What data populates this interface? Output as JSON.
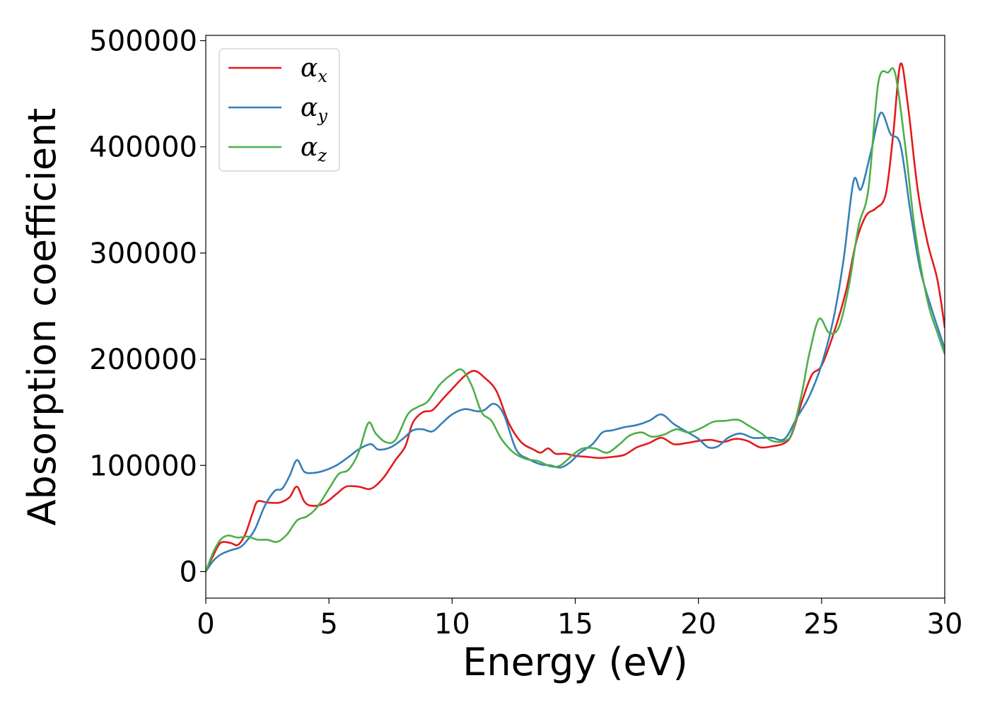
{
  "chart_data": {
    "type": "line",
    "title": "",
    "xlabel": "Energy (eV)",
    "ylabel": "Absorption coefficient",
    "xlim": [
      0,
      30
    ],
    "ylim": [
      -25000,
      505000
    ],
    "xticks": [
      0,
      5,
      10,
      15,
      20,
      25,
      30
    ],
    "yticks": [
      0,
      100000,
      200000,
      300000,
      400000,
      500000
    ],
    "grid": false,
    "legend_position": "top-left",
    "series": [
      {
        "name": "αx",
        "symbol": "α",
        "subscript": "x",
        "color": "#e41a1c",
        "points": [
          [
            0,
            0
          ],
          [
            0.3,
            15000
          ],
          [
            0.6,
            27000
          ],
          [
            1.0,
            27000
          ],
          [
            1.3,
            25000
          ],
          [
            1.6,
            35000
          ],
          [
            1.9,
            55000
          ],
          [
            2.1,
            66000
          ],
          [
            2.5,
            65000
          ],
          [
            3.0,
            65000
          ],
          [
            3.4,
            70000
          ],
          [
            3.7,
            80000
          ],
          [
            4.0,
            66000
          ],
          [
            4.3,
            62000
          ],
          [
            4.8,
            64000
          ],
          [
            5.3,
            73000
          ],
          [
            5.7,
            80000
          ],
          [
            6.2,
            80000
          ],
          [
            6.7,
            78000
          ],
          [
            7.2,
            88000
          ],
          [
            7.7,
            105000
          ],
          [
            8.1,
            118000
          ],
          [
            8.4,
            140000
          ],
          [
            8.8,
            150000
          ],
          [
            9.2,
            152000
          ],
          [
            9.6,
            162000
          ],
          [
            10.0,
            172000
          ],
          [
            10.5,
            184000
          ],
          [
            10.9,
            189000
          ],
          [
            11.3,
            183000
          ],
          [
            11.8,
            170000
          ],
          [
            12.3,
            140000
          ],
          [
            12.8,
            122000
          ],
          [
            13.3,
            115000
          ],
          [
            13.6,
            112000
          ],
          [
            13.9,
            116000
          ],
          [
            14.2,
            111000
          ],
          [
            14.6,
            111000
          ],
          [
            15.0,
            109000
          ],
          [
            15.5,
            108000
          ],
          [
            16.0,
            107000
          ],
          [
            16.5,
            108000
          ],
          [
            17.0,
            110000
          ],
          [
            17.5,
            117000
          ],
          [
            18.0,
            121000
          ],
          [
            18.5,
            126000
          ],
          [
            19.0,
            120000
          ],
          [
            19.5,
            121000
          ],
          [
            20.0,
            123000
          ],
          [
            20.5,
            124000
          ],
          [
            21.0,
            122000
          ],
          [
            21.5,
            125000
          ],
          [
            22.0,
            123000
          ],
          [
            22.5,
            117000
          ],
          [
            23.0,
            118000
          ],
          [
            23.5,
            121000
          ],
          [
            23.8,
            130000
          ],
          [
            24.2,
            160000
          ],
          [
            24.6,
            185000
          ],
          [
            25.0,
            194000
          ],
          [
            25.5,
            225000
          ],
          [
            26.0,
            265000
          ],
          [
            26.4,
            310000
          ],
          [
            26.8,
            335000
          ],
          [
            27.2,
            342000
          ],
          [
            27.6,
            355000
          ],
          [
            27.9,
            410000
          ],
          [
            28.2,
            478000
          ],
          [
            28.5,
            440000
          ],
          [
            28.9,
            360000
          ],
          [
            29.3,
            310000
          ],
          [
            29.7,
            275000
          ],
          [
            30.0,
            230000
          ]
        ]
      },
      {
        "name": "αy",
        "symbol": "α",
        "subscript": "y",
        "color": "#377eb8",
        "points": [
          [
            0,
            0
          ],
          [
            0.3,
            10000
          ],
          [
            0.6,
            16000
          ],
          [
            1.0,
            20000
          ],
          [
            1.4,
            23000
          ],
          [
            1.7,
            30000
          ],
          [
            2.0,
            40000
          ],
          [
            2.4,
            62000
          ],
          [
            2.8,
            76000
          ],
          [
            3.1,
            78000
          ],
          [
            3.4,
            90000
          ],
          [
            3.7,
            105000
          ],
          [
            4.0,
            94000
          ],
          [
            4.4,
            93000
          ],
          [
            4.8,
            95000
          ],
          [
            5.3,
            100000
          ],
          [
            5.8,
            108000
          ],
          [
            6.2,
            115000
          ],
          [
            6.7,
            120000
          ],
          [
            7.0,
            115000
          ],
          [
            7.5,
            117000
          ],
          [
            8.0,
            125000
          ],
          [
            8.4,
            133000
          ],
          [
            8.8,
            134000
          ],
          [
            9.2,
            132000
          ],
          [
            9.6,
            140000
          ],
          [
            10.0,
            148000
          ],
          [
            10.5,
            153000
          ],
          [
            11.0,
            151000
          ],
          [
            11.3,
            152000
          ],
          [
            11.7,
            158000
          ],
          [
            12.1,
            148000
          ],
          [
            12.6,
            115000
          ],
          [
            13.1,
            106000
          ],
          [
            13.6,
            101000
          ],
          [
            14.0,
            100000
          ],
          [
            14.4,
            98000
          ],
          [
            14.8,
            103000
          ],
          [
            15.2,
            112000
          ],
          [
            15.7,
            120000
          ],
          [
            16.1,
            131000
          ],
          [
            16.5,
            133000
          ],
          [
            17.0,
            136000
          ],
          [
            17.5,
            138000
          ],
          [
            18.0,
            142000
          ],
          [
            18.5,
            148000
          ],
          [
            19.0,
            139000
          ],
          [
            19.5,
            132000
          ],
          [
            20.0,
            125000
          ],
          [
            20.4,
            117000
          ],
          [
            20.8,
            118000
          ],
          [
            21.2,
            126000
          ],
          [
            21.7,
            130000
          ],
          [
            22.2,
            126000
          ],
          [
            22.6,
            126000
          ],
          [
            23.0,
            126000
          ],
          [
            23.5,
            125000
          ],
          [
            24.0,
            145000
          ],
          [
            24.5,
            165000
          ],
          [
            25.0,
            195000
          ],
          [
            25.5,
            240000
          ],
          [
            25.9,
            295000
          ],
          [
            26.3,
            368000
          ],
          [
            26.6,
            360000
          ],
          [
            27.0,
            395000
          ],
          [
            27.4,
            432000
          ],
          [
            27.8,
            412000
          ],
          [
            28.2,
            402000
          ],
          [
            28.6,
            340000
          ],
          [
            29.0,
            285000
          ],
          [
            29.5,
            245000
          ],
          [
            30.0,
            210000
          ]
        ]
      },
      {
        "name": "αz",
        "symbol": "α",
        "subscript": "z",
        "color": "#4daf4a",
        "points": [
          [
            0,
            0
          ],
          [
            0.3,
            18000
          ],
          [
            0.6,
            30000
          ],
          [
            0.9,
            34000
          ],
          [
            1.3,
            32000
          ],
          [
            1.7,
            33000
          ],
          [
            2.1,
            30000
          ],
          [
            2.5,
            30000
          ],
          [
            2.9,
            28000
          ],
          [
            3.3,
            35000
          ],
          [
            3.7,
            48000
          ],
          [
            4.1,
            52000
          ],
          [
            4.5,
            60000
          ],
          [
            5.0,
            78000
          ],
          [
            5.4,
            92000
          ],
          [
            5.8,
            96000
          ],
          [
            6.2,
            112000
          ],
          [
            6.6,
            140000
          ],
          [
            6.9,
            130000
          ],
          [
            7.3,
            122000
          ],
          [
            7.7,
            124000
          ],
          [
            8.2,
            148000
          ],
          [
            8.6,
            155000
          ],
          [
            9.0,
            160000
          ],
          [
            9.5,
            176000
          ],
          [
            10.0,
            186000
          ],
          [
            10.4,
            190000
          ],
          [
            10.8,
            175000
          ],
          [
            11.2,
            150000
          ],
          [
            11.6,
            142000
          ],
          [
            12.0,
            125000
          ],
          [
            12.5,
            112000
          ],
          [
            13.0,
            106000
          ],
          [
            13.5,
            104000
          ],
          [
            14.0,
            99000
          ],
          [
            14.4,
            100000
          ],
          [
            14.9,
            110000
          ],
          [
            15.3,
            116000
          ],
          [
            15.8,
            116000
          ],
          [
            16.3,
            112000
          ],
          [
            16.8,
            120000
          ],
          [
            17.2,
            128000
          ],
          [
            17.7,
            131000
          ],
          [
            18.1,
            127000
          ],
          [
            18.6,
            129000
          ],
          [
            19.1,
            134000
          ],
          [
            19.6,
            131000
          ],
          [
            20.1,
            135000
          ],
          [
            20.6,
            141000
          ],
          [
            21.1,
            142000
          ],
          [
            21.6,
            143000
          ],
          [
            22.0,
            138000
          ],
          [
            22.5,
            131000
          ],
          [
            23.0,
            123000
          ],
          [
            23.5,
            123000
          ],
          [
            23.8,
            131000
          ],
          [
            24.2,
            168000
          ],
          [
            24.5,
            205000
          ],
          [
            24.9,
            238000
          ],
          [
            25.3,
            225000
          ],
          [
            25.7,
            230000
          ],
          [
            26.1,
            268000
          ],
          [
            26.5,
            325000
          ],
          [
            26.9,
            360000
          ],
          [
            27.3,
            460000
          ],
          [
            27.7,
            470000
          ],
          [
            28.0,
            468000
          ],
          [
            28.4,
            400000
          ],
          [
            28.8,
            320000
          ],
          [
            29.3,
            255000
          ],
          [
            29.7,
            225000
          ],
          [
            30.0,
            205000
          ]
        ]
      }
    ]
  }
}
